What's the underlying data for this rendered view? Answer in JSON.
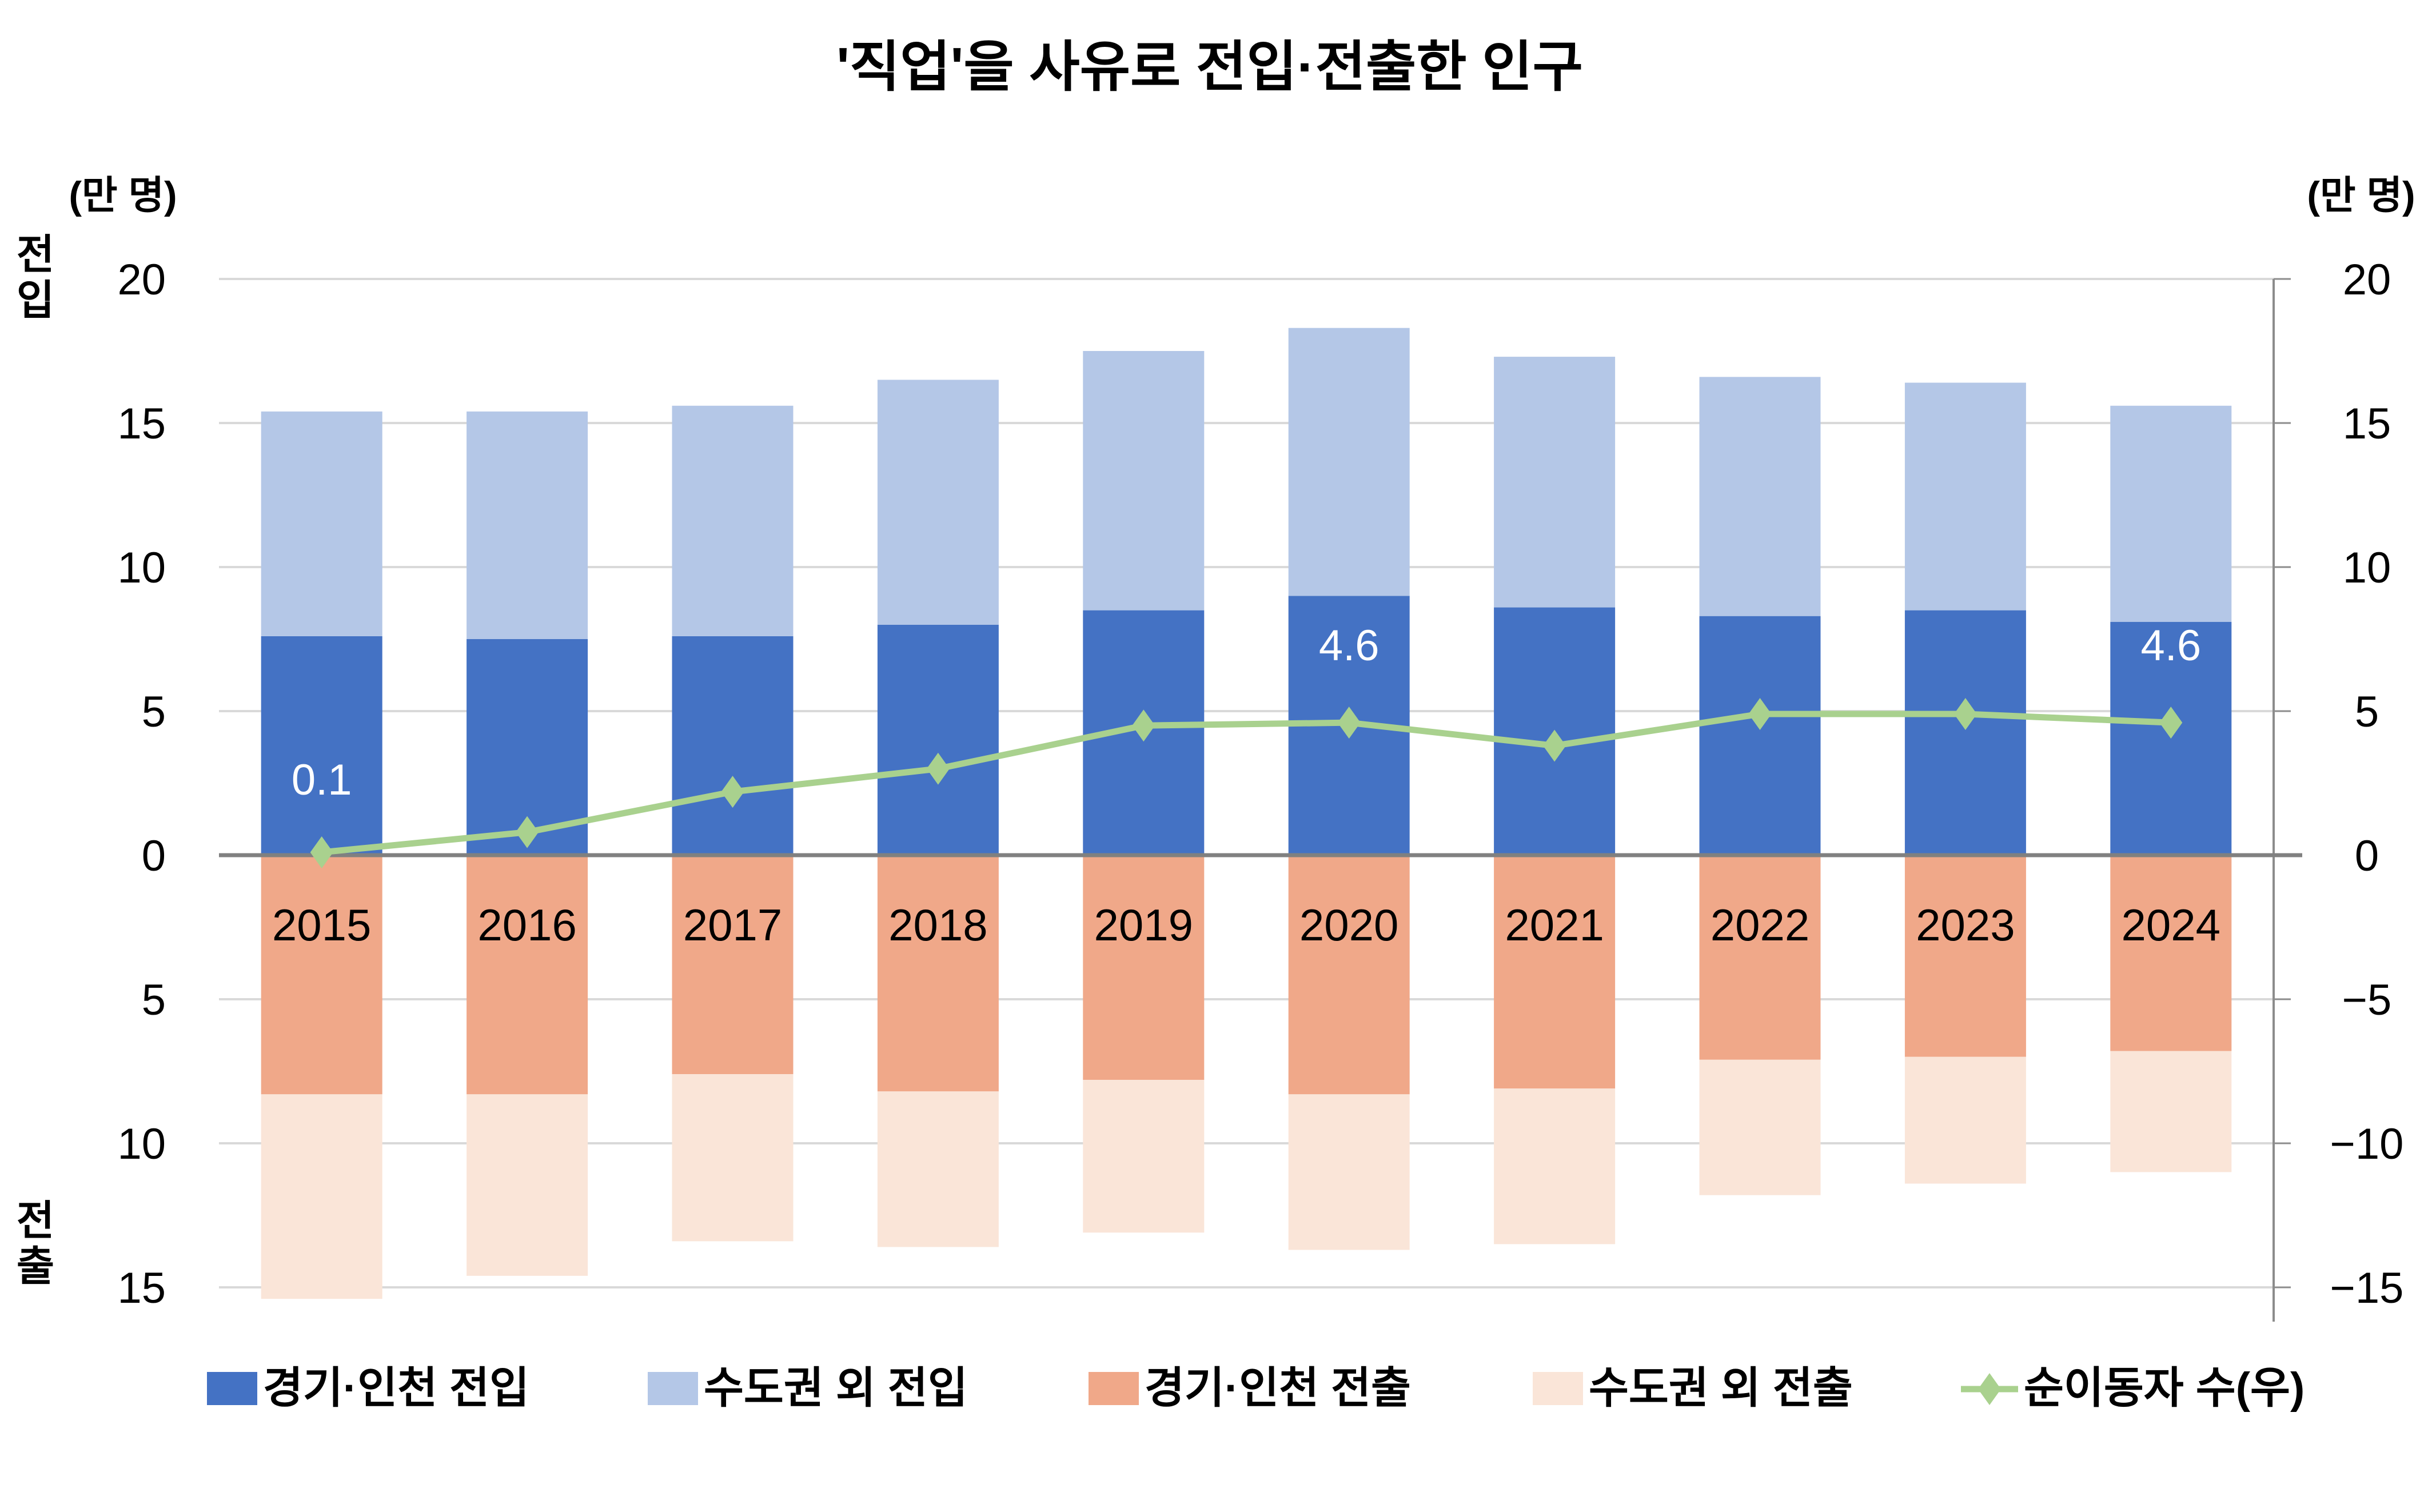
{
  "chart_data": {
    "type": "bar",
    "subtype": "stacked-diverging-bar-with-line",
    "title": "'직업'을 사유로 전입·전출한 인구",
    "left_unit": "(만 명)",
    "right_unit": "(만 명)",
    "inflow_axis_label": "전입",
    "outflow_axis_label": "전출",
    "categories": [
      "2015",
      "2016",
      "2017",
      "2018",
      "2019",
      "2020",
      "2021",
      "2022",
      "2023",
      "2024"
    ],
    "series": [
      {
        "name": "경기·인천 전입",
        "kind": "bar",
        "direction": "up",
        "color": "#4472C4",
        "values": [
          7.6,
          7.5,
          7.6,
          8.0,
          8.5,
          9.0,
          8.6,
          8.3,
          8.5,
          8.1
        ]
      },
      {
        "name": "수도권 외 전입",
        "kind": "bar",
        "direction": "up",
        "color": "#B4C7E7",
        "values": [
          7.8,
          7.9,
          8.0,
          8.5,
          9.0,
          9.3,
          8.7,
          8.3,
          7.9,
          7.5
        ]
      },
      {
        "name": "경기·인천 전출",
        "kind": "bar",
        "direction": "down",
        "color": "#F0A889",
        "values": [
          8.3,
          8.3,
          7.6,
          8.2,
          7.8,
          8.3,
          8.1,
          7.1,
          7.0,
          6.8
        ]
      },
      {
        "name": "수도권 외 전출",
        "kind": "bar",
        "direction": "down",
        "color": "#FAE5D8",
        "values": [
          7.1,
          6.3,
          5.8,
          5.4,
          5.3,
          5.4,
          5.4,
          4.7,
          4.4,
          4.2
        ]
      },
      {
        "name": "순이동자 수(우)",
        "kind": "line",
        "axis": "right",
        "color": "#A9D18E",
        "marker": "diamond",
        "values": [
          0.1,
          0.8,
          2.2,
          3.0,
          4.5,
          4.6,
          3.8,
          4.9,
          4.9,
          4.6
        ]
      }
    ],
    "data_labels": [
      {
        "category": "2015",
        "text": "0.1"
      },
      {
        "category": "2020",
        "text": "4.6"
      },
      {
        "category": "2024",
        "text": "4.6"
      }
    ],
    "left_axis": {
      "ylim": [
        -15,
        20
      ],
      "ticks": [
        20,
        15,
        10,
        5,
        0,
        -5,
        -10,
        -15
      ],
      "tick_labels": [
        "20",
        "15",
        "10",
        "5",
        "0",
        "5",
        "10",
        "15"
      ]
    },
    "right_axis": {
      "ylim": [
        -15,
        20
      ],
      "ticks": [
        20,
        15,
        10,
        5,
        0,
        -5,
        -10,
        -15
      ],
      "tick_labels": [
        "20",
        "15",
        "10",
        "5",
        "0",
        "−5",
        "−10",
        "−15"
      ]
    },
    "grid": true,
    "legend_position": "bottom"
  }
}
